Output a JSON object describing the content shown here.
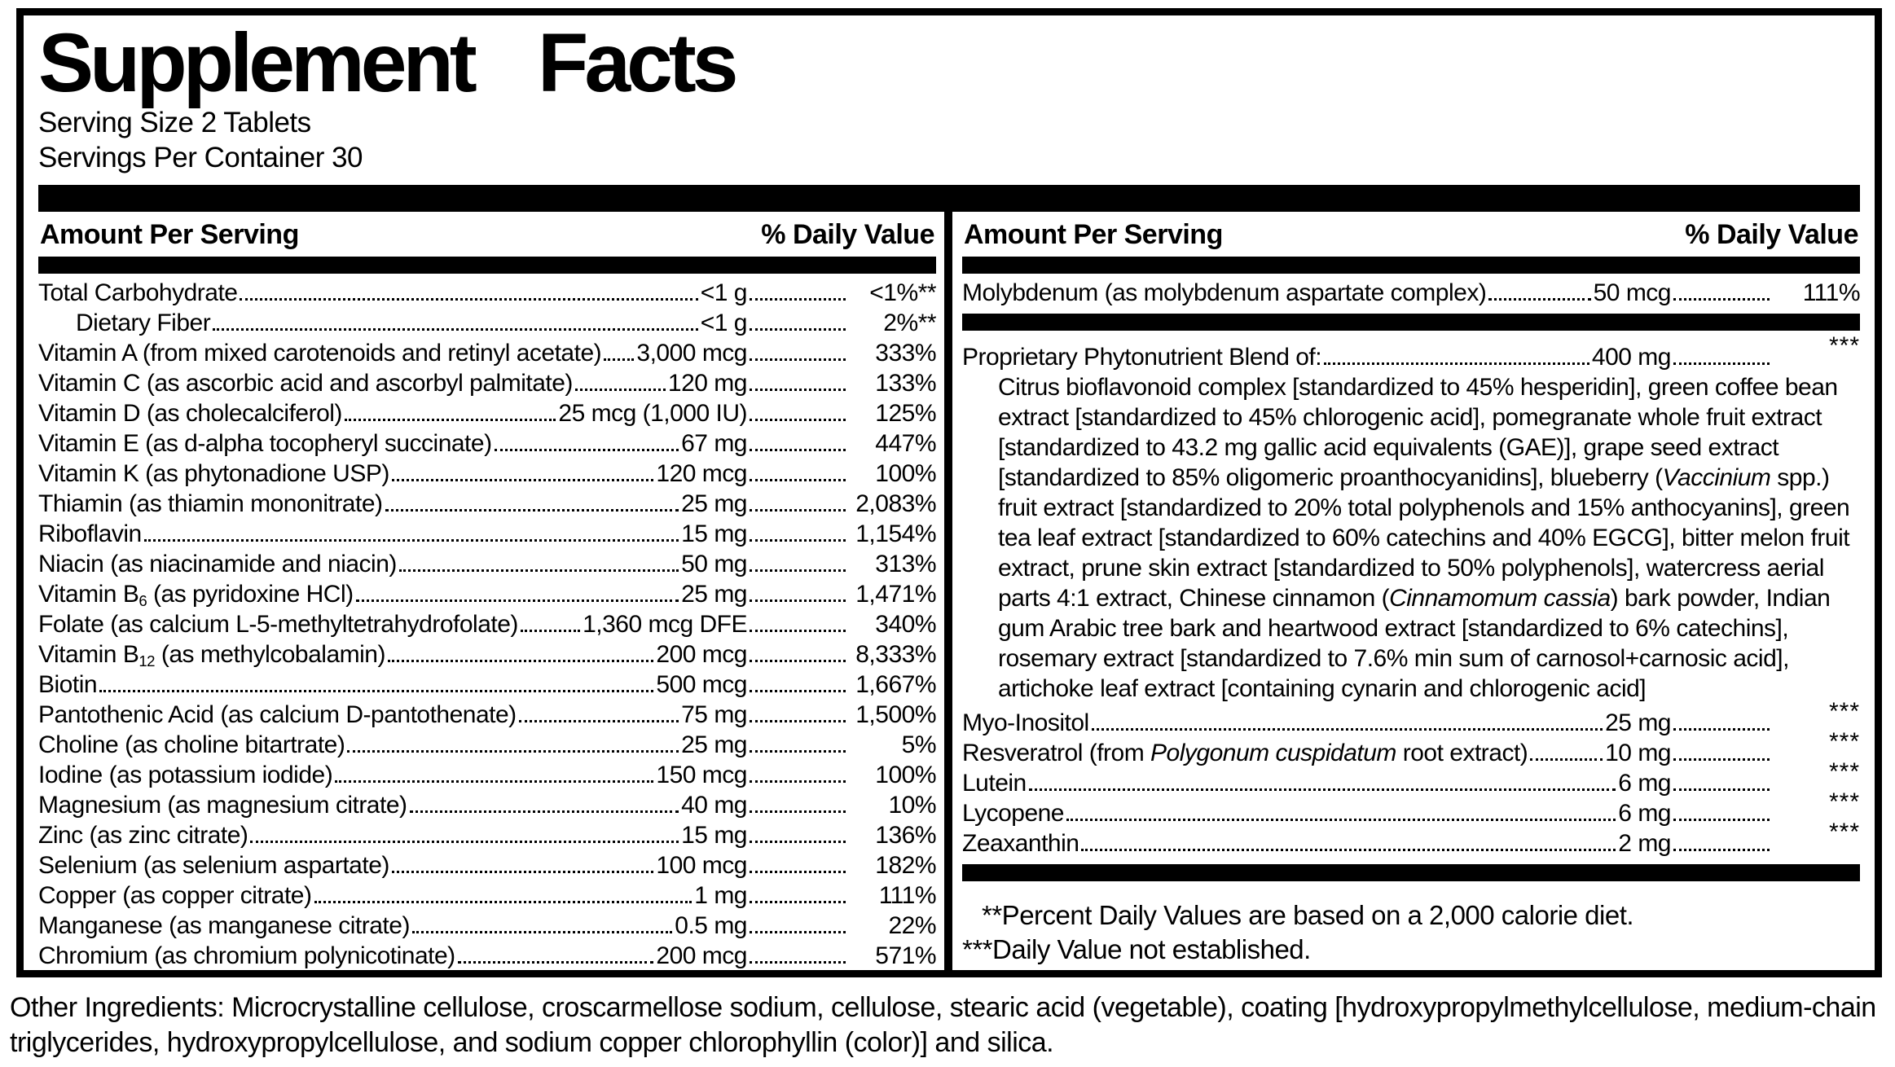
{
  "title": "Supplement Facts",
  "serving": {
    "size": "Serving Size 2 Tablets",
    "per_container": "Servings Per Container 30"
  },
  "header": {
    "amount": "Amount Per Serving",
    "daily_value": "% Daily Value"
  },
  "colors": {
    "ink": "#000000",
    "paper": "#ffffff"
  },
  "left_rows": [
    {
      "name": "Total Carbohydrate",
      "amount": "<1 g",
      "dv": "<1%**"
    },
    {
      "name": "Dietary Fiber",
      "amount": "<1 g",
      "dv": "2%**",
      "indent": true
    },
    {
      "name": "Vitamin A (from mixed carotenoids and retinyl acetate)",
      "amount": "3,000 mcg",
      "dv": "333%"
    },
    {
      "name": "Vitamin C (as ascorbic acid and ascorbyl palmitate)",
      "amount": "120 mg",
      "dv": "133%"
    },
    {
      "name": "Vitamin D (as cholecalciferol)",
      "amount": "25 mcg (1,000 IU)",
      "dv": "125%"
    },
    {
      "name": "Vitamin E (as d-alpha tocopheryl succinate)",
      "amount": "67 mg",
      "dv": "447%"
    },
    {
      "name": "Vitamin K (as phytonadione USP)",
      "amount": "120 mcg",
      "dv": "100%"
    },
    {
      "name": "Thiamin (as thiamin mononitrate)",
      "amount": "25 mg",
      "dv": "2,083%"
    },
    {
      "name": "Riboflavin",
      "amount": "15 mg",
      "dv": "1,154%"
    },
    {
      "name": "Niacin (as niacinamide and niacin)",
      "amount": "50 mg",
      "dv": "313%"
    },
    {
      "name_parts": [
        {
          "t": "Vitamin B"
        },
        {
          "t": "6",
          "sub": true
        },
        {
          "t": " (as pyridoxine HCl)"
        }
      ],
      "amount": "25 mg",
      "dv": "1,471%"
    },
    {
      "name": "Folate (as calcium L-5-methyltetrahydrofolate)",
      "amount": "1,360 mcg DFE",
      "dv": "340%"
    },
    {
      "name_parts": [
        {
          "t": "Vitamin B"
        },
        {
          "t": "12",
          "sub": true
        },
        {
          "t": " (as methylcobalamin)"
        }
      ],
      "amount": "200 mcg",
      "dv": "8,333%"
    },
    {
      "name": "Biotin",
      "amount": "500 mcg",
      "dv": "1,667%"
    },
    {
      "name": "Pantothenic Acid (as calcium D-pantothenate)",
      "amount": "75 mg",
      "dv": "1,500%"
    },
    {
      "name": "Choline (as choline bitartrate)",
      "amount": "25 mg",
      "dv": "5%"
    },
    {
      "name": "Iodine (as potassium iodide)",
      "amount": "150 mcg",
      "dv": "100%"
    },
    {
      "name": "Magnesium (as magnesium citrate)",
      "amount": "40 mg",
      "dv": "10%"
    },
    {
      "name": "Zinc (as zinc citrate)",
      "amount": "15 mg",
      "dv": "136%"
    },
    {
      "name": "Selenium (as selenium aspartate)",
      "amount": "100 mcg",
      "dv": "182%"
    },
    {
      "name": "Copper (as copper citrate)",
      "amount": "1 mg",
      "dv": "111%"
    },
    {
      "name": "Manganese (as manganese citrate)",
      "amount": "0.5 mg",
      "dv": "22%"
    },
    {
      "name": "Chromium (as chromium polynicotinate)",
      "amount": "200 mcg",
      "dv": "571%"
    }
  ],
  "right": {
    "top_rows": [
      {
        "name": "Molybdenum (as molybdenum aspartate complex)",
        "amount": "50 mcg",
        "dv": "111%"
      }
    ],
    "blend_row": {
      "name": "Proprietary Phytonutrient Blend of:",
      "amount": "400 mg",
      "dv": "***"
    },
    "blend_description_parts": [
      {
        "t": "Citrus bioflavonoid complex [standardized to 45% hesperidin], green coffee bean extract [standardized to 45% chlorogenic acid], pomegranate whole fruit extract [standardized to 43.2 mg gallic acid equivalents (GAE)], grape seed extract [standardized to 85% oligomeric proanthocyanidins], blueberry ("
      },
      {
        "t": "Vaccinium",
        "italic": true
      },
      {
        "t": " spp.) fruit extract [standardized to 20% total polyphenols and 15% anthocyanins], green tea leaf extract [standardized to 60% catechins and 40% EGCG], bitter melon fruit extract, prune skin extract [standardized to 50% polyphenols], watercress aerial parts 4:1 extract, Chinese cinnamon ("
      },
      {
        "t": "Cinnamomum cassia",
        "italic": true
      },
      {
        "t": ") bark powder, Indian gum Arabic tree bark and heartwood extract [standardized to 6% catechins], rosemary extract [standardized to 7.6% min sum of carnosol+carnosic acid], artichoke leaf extract [containing cynarin and chlorogenic acid]"
      }
    ],
    "bottom_rows": [
      {
        "name": "Myo-Inositol",
        "amount": "25 mg",
        "dv": "***"
      },
      {
        "name_parts": [
          {
            "t": "Resveratrol (from "
          },
          {
            "t": "Polygonum cuspidatum",
            "italic": true
          },
          {
            "t": " root extract)"
          }
        ],
        "amount": "10 mg",
        "dv": "***"
      },
      {
        "name": "Lutein",
        "amount": "6 mg",
        "dv": "***"
      },
      {
        "name": "Lycopene",
        "amount": "6 mg",
        "dv": "***"
      },
      {
        "name": "Zeaxanthin",
        "amount": "2 mg",
        "dv": "***"
      }
    ],
    "footnotes": [
      "**Percent Daily Values are based on a 2,000 calorie diet.",
      "***Daily Value not established."
    ]
  },
  "other_ingredients": "Other Ingredients: Microcrystalline cellulose, croscarmellose sodium, cellulose, stearic acid (vegetable), coating [hydroxypropylmethylcellulose, medium-chain triglycerides, hydroxypropylcellulose, and sodium copper chlorophyllin (color)] and silica."
}
